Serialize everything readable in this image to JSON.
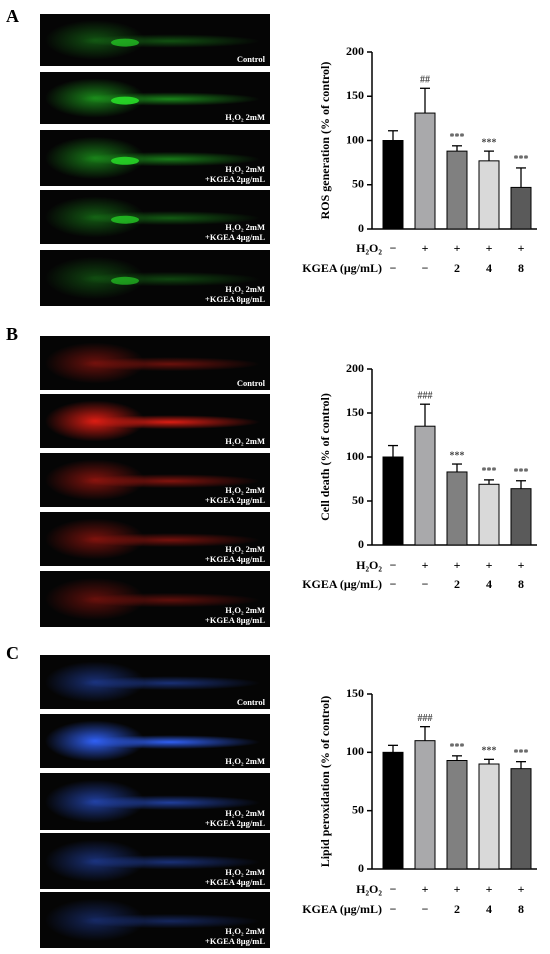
{
  "chart_data": [
    {
      "type": "bar",
      "panel_label": "A",
      "ylabel": "ROS generation (% of control)",
      "image_captions": [
        [
          "Control"
        ],
        [
          "H₂O₂ 2mM"
        ],
        [
          "H₂O₂ 2mM",
          "+KGEA 2μg/mL"
        ],
        [
          "H₂O₂ 2mM",
          "+KGEA 4μg/mL"
        ],
        [
          "H₂O₂ 2mM",
          "+KGEA 8μg/mL"
        ]
      ],
      "row_labels": [
        "H₂O₂",
        "KGEA (μg/mL)"
      ],
      "rows": [
        [
          "−",
          "+",
          "+",
          "+",
          "+"
        ],
        [
          "−",
          "−",
          "2",
          "4",
          "8"
        ]
      ],
      "series": [
        {
          "values": [
            100,
            131,
            88,
            77,
            47
          ],
          "errors": [
            11,
            28,
            6,
            11,
            22
          ],
          "colors": [
            "#000000",
            "#a9a9ab",
            "#808080",
            "#d9d9d9",
            "#5a5a5a"
          ]
        }
      ],
      "annotations": [
        null,
        "##",
        "***",
        "***",
        "***"
      ],
      "ylim": [
        0,
        200
      ],
      "yticks": [
        0,
        50,
        100,
        150,
        200
      ]
    },
    {
      "type": "bar",
      "panel_label": "B",
      "ylabel": "Cell death (% of control)",
      "image_captions": [
        [
          "Control"
        ],
        [
          "H₂O₂ 2mM"
        ],
        [
          "H₂O₂ 2mM",
          "+KGEA 2μg/mL"
        ],
        [
          "H₂O₂ 2mM",
          "+KGEA 4μg/mL"
        ],
        [
          "H₂O₂ 2mM",
          "+KGEA 8μg/mL"
        ]
      ],
      "row_labels": [
        "H₂O₂",
        "KGEA (μg/mL)"
      ],
      "rows": [
        [
          "−",
          "+",
          "+",
          "+",
          "+"
        ],
        [
          "−",
          "−",
          "2",
          "4",
          "8"
        ]
      ],
      "series": [
        {
          "values": [
            100,
            135,
            83,
            69,
            64
          ],
          "errors": [
            13,
            25,
            9,
            5,
            9
          ],
          "colors": [
            "#000000",
            "#a9a9ab",
            "#808080",
            "#d9d9d9",
            "#5a5a5a"
          ]
        }
      ],
      "annotations": [
        null,
        "###",
        "***",
        "***",
        "***"
      ],
      "ylim": [
        0,
        200
      ],
      "yticks": [
        0,
        50,
        100,
        150,
        200
      ]
    },
    {
      "type": "bar",
      "panel_label": "C",
      "ylabel": "Lipid peroxidation (% of control)",
      "image_captions": [
        [
          "Control"
        ],
        [
          "H₂O₂ 2mM"
        ],
        [
          "H₂O₂ 2mM",
          "+KGEA 2μg/mL"
        ],
        [
          "H₂O₂ 2mM",
          "+KGEA 4μg/mL"
        ],
        [
          "H₂O₂ 2mM",
          "+KGEA 8μg/mL"
        ]
      ],
      "row_labels": [
        "H₂O₂",
        "KGEA (μg/mL)"
      ],
      "rows": [
        [
          "−",
          "+",
          "+",
          "+",
          "+"
        ],
        [
          "−",
          "−",
          "2",
          "4",
          "8"
        ]
      ],
      "series": [
        {
          "values": [
            100,
            110,
            93,
            90,
            86
          ],
          "errors": [
            6,
            12,
            4,
            4,
            6
          ],
          "colors": [
            "#000000",
            "#a9a9ab",
            "#808080",
            "#d9d9d9",
            "#5a5a5a"
          ]
        }
      ],
      "annotations": [
        null,
        "###",
        "***",
        "***",
        "***"
      ],
      "ylim": [
        0,
        150
      ],
      "yticks": [
        0,
        50,
        100,
        150
      ]
    }
  ]
}
